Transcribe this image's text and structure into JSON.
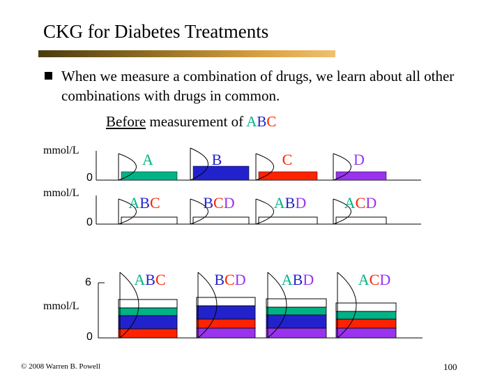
{
  "slide": {
    "title": "CKG for Diabetes Treatments",
    "bullet": "When we measure a combination of drugs, we learn about all other combinations with drugs in common.",
    "caption_prefix": "Before",
    "caption_middle": " measurement of ",
    "caption_drugs": "ABC",
    "footer": "© 2008 Warren B. Powell",
    "page_number": "100"
  },
  "colors": {
    "A": "#00b386",
    "B": "#2222cc",
    "C": "#ff2200",
    "D": "#9933ee",
    "text": "#000000"
  },
  "panels": [
    {
      "id": "single",
      "ylabel": "mmol/L",
      "ticks": [
        "0"
      ],
      "labels": [
        "A",
        "B",
        "C",
        "D"
      ],
      "bars": [
        {
          "drug": "A",
          "level": "low"
        },
        {
          "drug": "B",
          "level": "high"
        },
        {
          "drug": "C",
          "level": "low"
        },
        {
          "drug": "D",
          "level": "low"
        }
      ]
    },
    {
      "id": "combo",
      "ylabel": "mmol/L",
      "ticks": [
        "0"
      ],
      "labels": [
        "ABC",
        "BCD",
        "ABD",
        "ACD"
      ],
      "bars": [
        {
          "combo": "ABC"
        },
        {
          "combo": "BCD"
        },
        {
          "combo": "ABD"
        },
        {
          "combo": "ACD"
        }
      ]
    },
    {
      "id": "stacked",
      "ylabel": "mmol/L",
      "ticks": [
        "6",
        "0"
      ],
      "labels": [
        "ABC",
        "BCD",
        "ABD",
        "ACD"
      ],
      "stacks": [
        [
          "C",
          "B",
          "A"
        ],
        [
          "D",
          "C",
          "B"
        ],
        [
          "D",
          "B",
          "A"
        ],
        [
          "D",
          "C",
          "A"
        ]
      ]
    }
  ]
}
